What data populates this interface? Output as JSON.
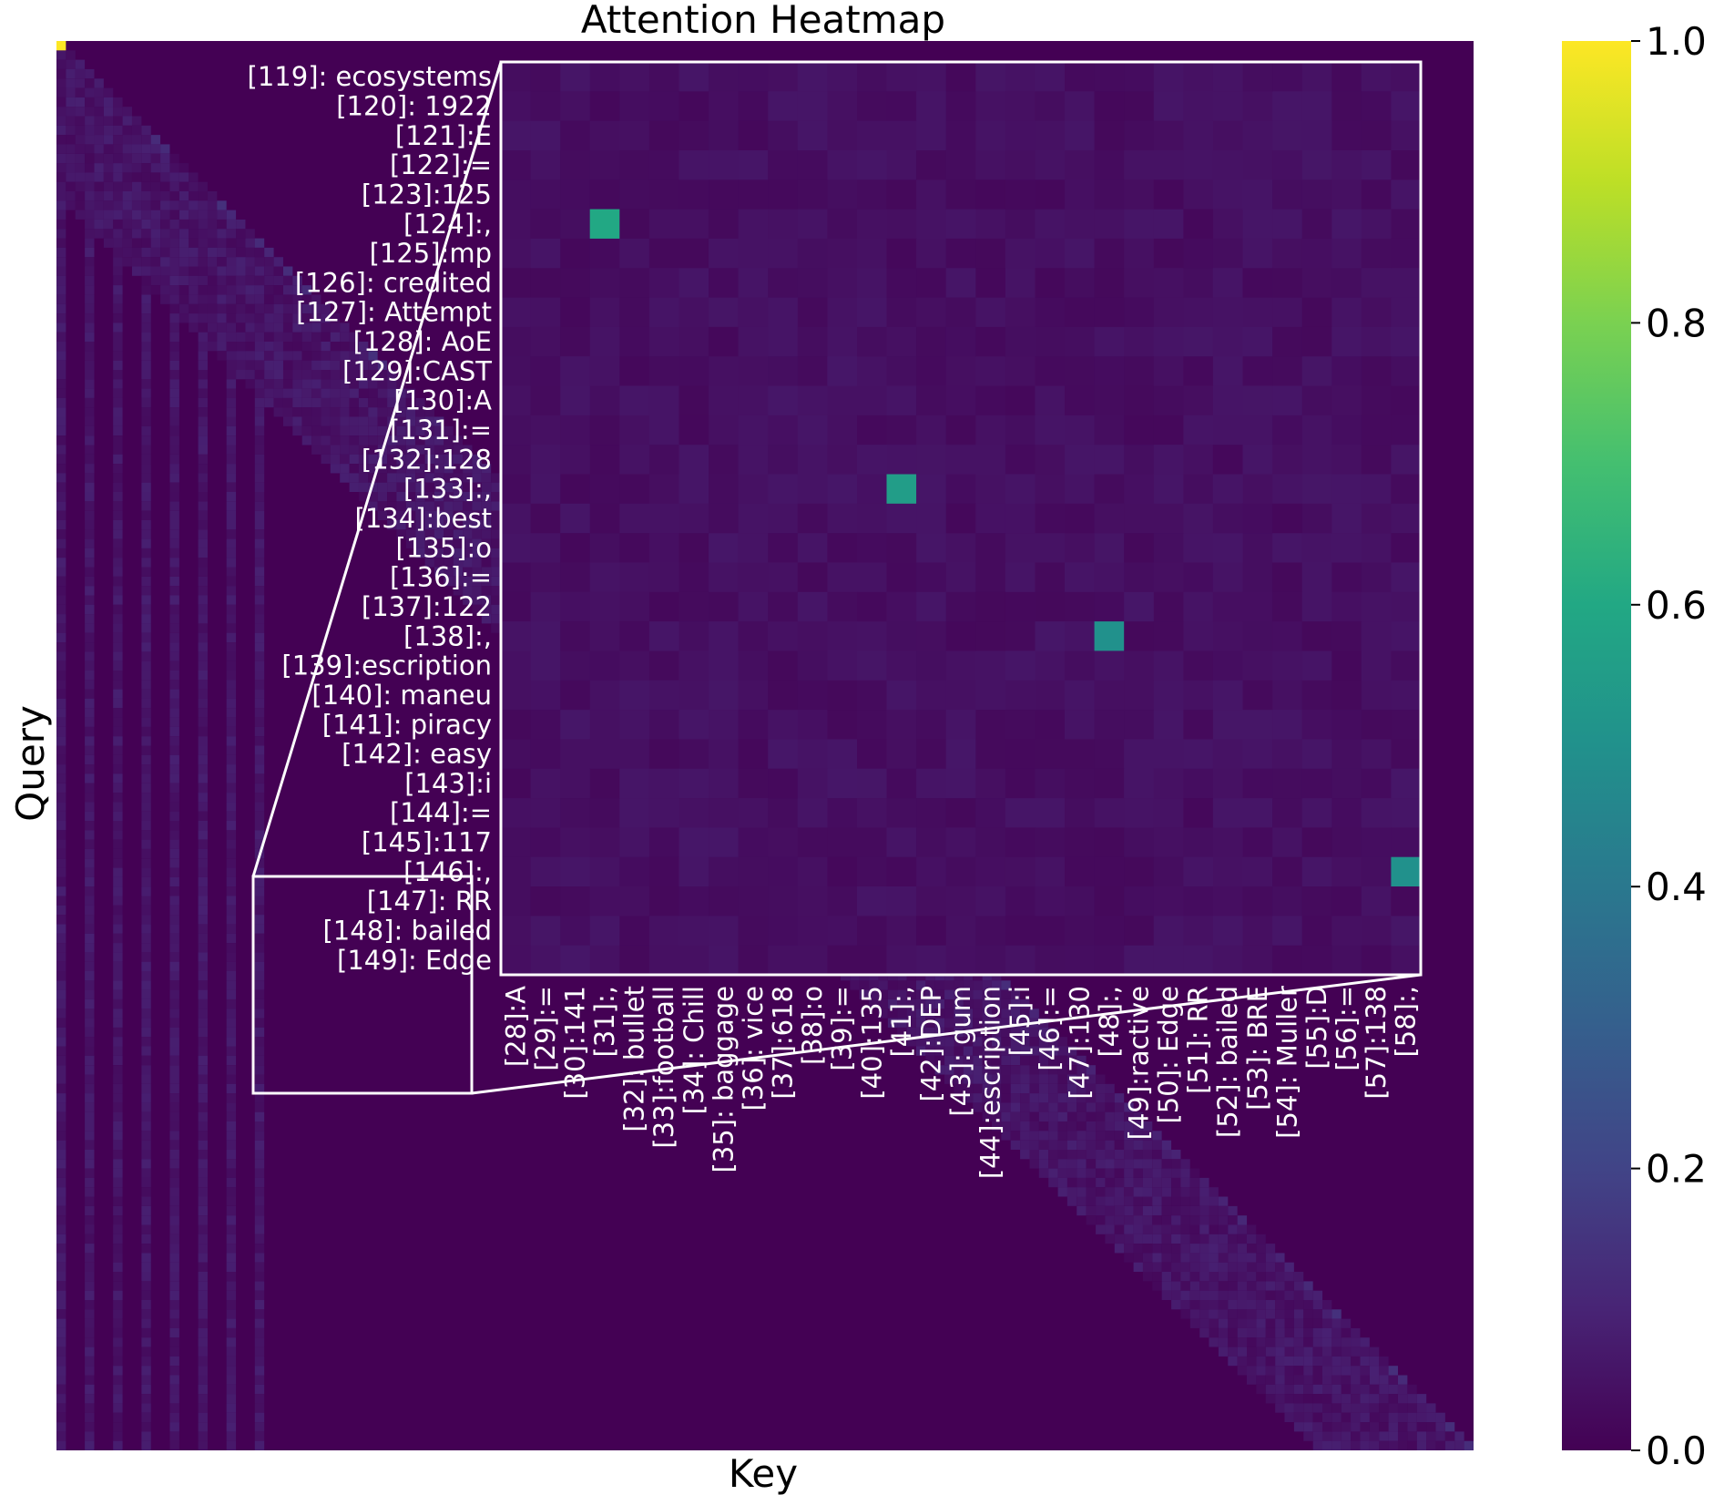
{
  "chart_data": {
    "type": "heatmap",
    "title": "Attention Heatmap",
    "xlabel": "Key",
    "ylabel": "Query",
    "colormap": "viridis",
    "colorbar": {
      "range": [
        0.0,
        1.0
      ],
      "ticks": [
        "0.0",
        "0.2",
        "0.4",
        "0.6",
        "0.8",
        "1.0"
      ]
    },
    "grid": false,
    "main_heatmap": {
      "description": "lower-triangular causal attention matrix, mostly near 0",
      "peak_cells": [
        {
          "query": 0,
          "key": 0,
          "value": 1.0
        }
      ]
    },
    "zoom_inset": {
      "query_labels": [
        "[119]: ecosystems",
        "[120]: 1922",
        "[121]:E",
        "[122]:=",
        "[123]:125",
        "[124]:,",
        "[125]:mp",
        "[126]: credited",
        "[127]: Attempt",
        "[128]: AoE",
        "[129]:CAST",
        "[130]:A",
        "[131]:=",
        "[132]:128",
        "[133]:,",
        "[134]:best",
        "[135]:o",
        "[136]:=",
        "[137]:122",
        "[138]:,",
        "[139]:escription",
        "[140]: maneu",
        "[141]: piracy",
        "[142]: easy",
        "[143]:i",
        "[144]:=",
        "[145]:117",
        "[146]:,",
        "[147]: RR",
        "[148]: bailed",
        "[149]: Edge"
      ],
      "key_labels": [
        "[28]:A",
        "[29]:=",
        "[30]:141",
        "[31]:,",
        "[32]: bullet",
        "[33]:football",
        "[34]: Chill",
        "[35]: baggage",
        "[36]: vice",
        "[37]:618",
        "[38]:o",
        "[39]:=",
        "[40]:135",
        "[41]:,",
        "[42]:DEP",
        "[43]: gum",
        "[44]:escription",
        "[45]:i",
        "[46]:=",
        "[47]:130",
        "[48]:,",
        "[49]:ractive",
        "[50]: Edge",
        "[51]: RR",
        "[52]: bailed",
        "[53]: BRE",
        "[54]: Muller",
        "[55]:D",
        "[56]:=",
        "[57]:138",
        "[58]:,"
      ],
      "highlight_cells": [
        {
          "query": "[124]:,",
          "key": "[31]:,",
          "value": 0.6
        },
        {
          "query": "[133]:,",
          "key": "[41]:,",
          "value": 0.55
        },
        {
          "query": "[138]:,",
          "key": "[48]:,",
          "value": 0.5
        },
        {
          "query": "[146]:,",
          "key": "[58]:,",
          "value": 0.5
        }
      ],
      "background_value": 0.02
    }
  }
}
